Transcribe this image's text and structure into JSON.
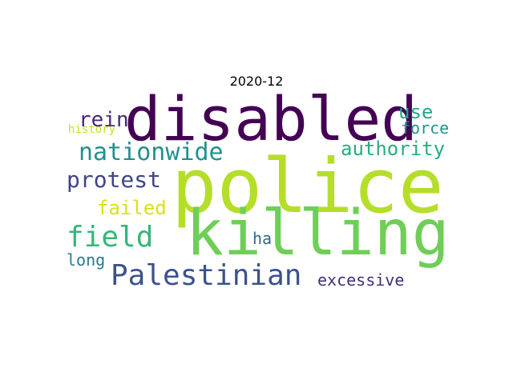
{
  "title": "2020-12",
  "words": [
    {
      "text": "police",
      "color": "#b5de2b"
    },
    {
      "text": "disabled",
      "color": "#440154"
    },
    {
      "text": "killing",
      "color": "#6ece58"
    },
    {
      "text": "Palestinian",
      "color": "#3b528b"
    },
    {
      "text": "nationwide",
      "color": "#21918c"
    },
    {
      "text": "field",
      "color": "#35b779"
    },
    {
      "text": "protest",
      "color": "#414487"
    },
    {
      "text": "authority",
      "color": "#26ad81"
    },
    {
      "text": "failed",
      "color": "#d8e219"
    },
    {
      "text": "rein",
      "color": "#482878"
    },
    {
      "text": "use",
      "color": "#22a884"
    },
    {
      "text": "force",
      "color": "#1f968b"
    },
    {
      "text": "excessive",
      "color": "#472c7a"
    },
    {
      "text": "long",
      "color": "#2a788e"
    },
    {
      "text": "ha",
      "color": "#31688e"
    },
    {
      "text": "history",
      "color": "#c8e020"
    }
  ]
}
